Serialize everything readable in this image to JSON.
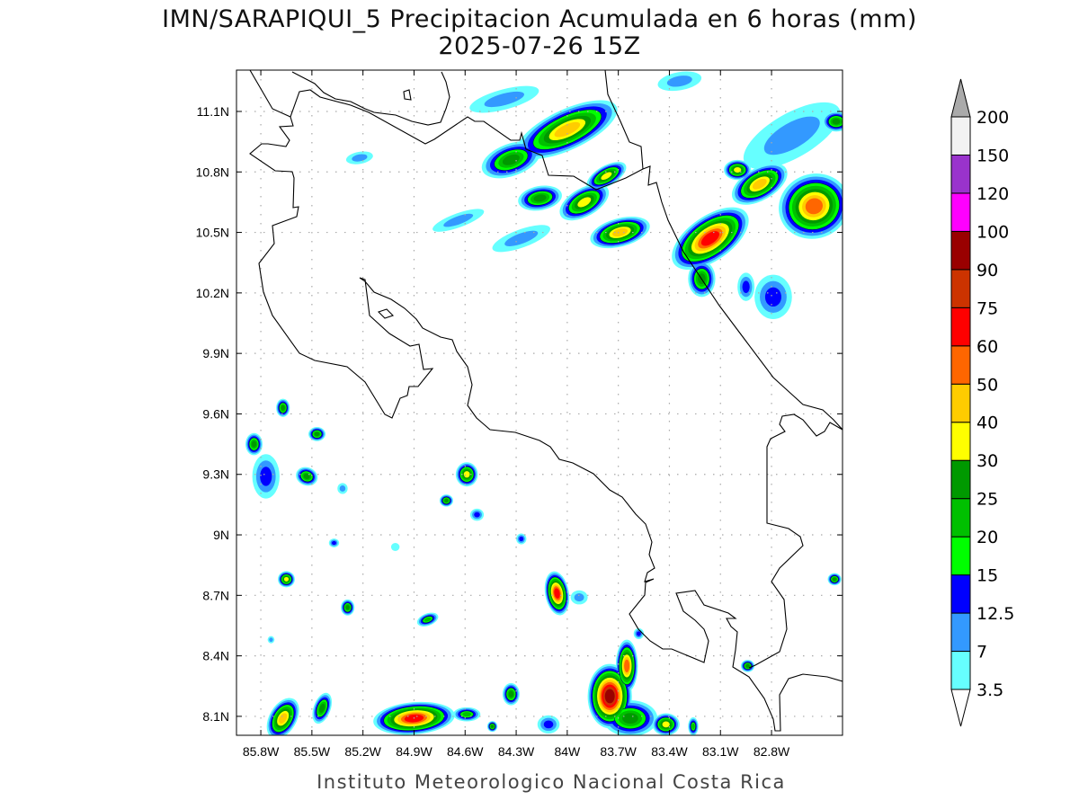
{
  "title": {
    "line1": "IMN/SARAPIQUI_5 Precipitacion Acumulada en 6 horas (mm)",
    "line2": "2025-07-26 15Z"
  },
  "footer": "Instituto Meteorologico Nacional Costa Rica",
  "map": {
    "lon_range": [
      -85.943,
      -82.383
    ],
    "lat_range": [
      8.006,
      11.305
    ],
    "lon_ticks": [
      {
        "value": -85.8,
        "label": "85.8W"
      },
      {
        "value": -85.5,
        "label": "85.5W"
      },
      {
        "value": -85.2,
        "label": "85.2W"
      },
      {
        "value": -84.9,
        "label": "84.9W"
      },
      {
        "value": -84.6,
        "label": "84.6W"
      },
      {
        "value": -84.3,
        "label": "84.3W"
      },
      {
        "value": -84.0,
        "label": "84W"
      },
      {
        "value": -83.7,
        "label": "83.7W"
      },
      {
        "value": -83.4,
        "label": "83.4W"
      },
      {
        "value": -83.1,
        "label": "83.1W"
      },
      {
        "value": -82.8,
        "label": "82.8W"
      }
    ],
    "lat_ticks": [
      {
        "value": 11.1,
        "label": "11.1N"
      },
      {
        "value": 10.8,
        "label": "10.8N"
      },
      {
        "value": 10.5,
        "label": "10.5N"
      },
      {
        "value": 10.2,
        "label": "10.2N"
      },
      {
        "value": 9.9,
        "label": "9.9N"
      },
      {
        "value": 9.6,
        "label": "9.6N"
      },
      {
        "value": 9.3,
        "label": "9.3N"
      },
      {
        "value": 9.0,
        "label": "9N"
      },
      {
        "value": 8.7,
        "label": "8.7N"
      },
      {
        "value": 8.4,
        "label": "8.4N"
      },
      {
        "value": 8.1,
        "label": "8.1N"
      }
    ],
    "grid": true
  },
  "colorbar": {
    "labels": [
      "3.5",
      "7",
      "12.5",
      "15",
      "20",
      "25",
      "30",
      "40",
      "50",
      "60",
      "75",
      "90",
      "100",
      "120",
      "150",
      "200"
    ],
    "colors": [
      "#66ffff",
      "#3399ff",
      "#0000ff",
      "#00ff00",
      "#00c000",
      "#009900",
      "#ffff00",
      "#ffcc00",
      "#ff6600",
      "#ff0000",
      "#cc3300",
      "#990000",
      "#ff00ff",
      "#9933cc",
      "#f2f2f2"
    ],
    "over_color": "#aaaaaa",
    "under_color": "#ffffff"
  },
  "chart_data": {
    "type": "heatmap",
    "title": "IMN/SARAPIQUI_5 Precipitacion Acumulada en 6 horas (mm)",
    "units": "mm",
    "levels": [
      3.5,
      7,
      12.5,
      15,
      20,
      25,
      30,
      40,
      50,
      60,
      75,
      90,
      100,
      120,
      150,
      200
    ],
    "precip_cells": [
      {
        "lon": -84.0,
        "lat": 11.01,
        "a": 0.32,
        "b": 0.1,
        "rot": -25,
        "peak": 40
      },
      {
        "lon": -84.33,
        "lat": 10.86,
        "a": 0.18,
        "b": 0.08,
        "rot": -20,
        "peak": 25
      },
      {
        "lon": -84.16,
        "lat": 10.67,
        "a": 0.13,
        "b": 0.06,
        "rot": -10,
        "peak": 25
      },
      {
        "lon": -83.9,
        "lat": 10.65,
        "a": 0.16,
        "b": 0.07,
        "rot": -30,
        "peak": 30
      },
      {
        "lon": -83.69,
        "lat": 10.5,
        "a": 0.18,
        "b": 0.07,
        "rot": -15,
        "peak": 40
      },
      {
        "lon": -83.77,
        "lat": 10.78,
        "a": 0.13,
        "b": 0.05,
        "rot": -30,
        "peak": 30
      },
      {
        "lon": -83.16,
        "lat": 10.47,
        "a": 0.26,
        "b": 0.11,
        "rot": -35,
        "peak": 60
      },
      {
        "lon": -82.87,
        "lat": 10.74,
        "a": 0.18,
        "b": 0.08,
        "rot": -30,
        "peak": 40
      },
      {
        "lon": -82.55,
        "lat": 10.63,
        "a": 0.21,
        "b": 0.16,
        "rot": -20,
        "peak": 50
      },
      {
        "lon": -83.0,
        "lat": 10.81,
        "a": 0.08,
        "b": 0.05,
        "rot": 0,
        "peak": 30
      },
      {
        "lon": -83.21,
        "lat": 10.27,
        "a": 0.08,
        "b": 0.09,
        "rot": 0,
        "peak": 25
      },
      {
        "lon": -82.68,
        "lat": 10.98,
        "a": 0.32,
        "b": 0.11,
        "rot": -30,
        "peak": 7
      },
      {
        "lon": -83.34,
        "lat": 11.25,
        "a": 0.13,
        "b": 0.045,
        "rot": -10,
        "peak": 7
      },
      {
        "lon": -84.37,
        "lat": 11.16,
        "a": 0.21,
        "b": 0.05,
        "rot": -15,
        "peak": 7
      },
      {
        "lon": -85.22,
        "lat": 10.87,
        "a": 0.08,
        "b": 0.03,
        "rot": -10,
        "peak": 7
      },
      {
        "lon": -84.64,
        "lat": 10.56,
        "a": 0.16,
        "b": 0.035,
        "rot": -20,
        "peak": 7
      },
      {
        "lon": -84.27,
        "lat": 10.47,
        "a": 0.18,
        "b": 0.045,
        "rot": -20,
        "peak": 7
      },
      {
        "lon": -82.79,
        "lat": 10.18,
        "a": 0.11,
        "b": 0.11,
        "rot": 0,
        "peak": 12.5
      },
      {
        "lon": -82.95,
        "lat": 10.23,
        "a": 0.05,
        "b": 0.07,
        "rot": 0,
        "peak": 12.5
      },
      {
        "lon": -82.42,
        "lat": 11.05,
        "a": 0.08,
        "b": 0.05,
        "rot": 0,
        "peak": 25
      },
      {
        "lon": -85.67,
        "lat": 9.63,
        "a": 0.04,
        "b": 0.045,
        "rot": 0,
        "peak": 25
      },
      {
        "lon": -85.84,
        "lat": 9.45,
        "a": 0.05,
        "b": 0.055,
        "rot": 0,
        "peak": 25
      },
      {
        "lon": -85.77,
        "lat": 9.29,
        "a": 0.08,
        "b": 0.11,
        "rot": 0,
        "peak": 12.5
      },
      {
        "lon": -85.53,
        "lat": 9.29,
        "a": 0.065,
        "b": 0.045,
        "rot": 20,
        "peak": 25
      },
      {
        "lon": -85.47,
        "lat": 9.5,
        "a": 0.05,
        "b": 0.035,
        "rot": 0,
        "peak": 25
      },
      {
        "lon": -85.32,
        "lat": 9.23,
        "a": 0.03,
        "b": 0.027,
        "rot": 0,
        "peak": 7
      },
      {
        "lon": -85.37,
        "lat": 8.96,
        "a": 0.03,
        "b": 0.022,
        "rot": 0,
        "peak": 12.5
      },
      {
        "lon": -85.65,
        "lat": 8.78,
        "a": 0.05,
        "b": 0.04,
        "rot": 0,
        "peak": 30
      },
      {
        "lon": -85.29,
        "lat": 8.64,
        "a": 0.04,
        "b": 0.04,
        "rot": 0,
        "peak": 25
      },
      {
        "lon": -84.82,
        "lat": 8.58,
        "a": 0.065,
        "b": 0.03,
        "rot": -20,
        "peak": 20
      },
      {
        "lon": -84.59,
        "lat": 9.3,
        "a": 0.065,
        "b": 0.06,
        "rot": 0,
        "peak": 30
      },
      {
        "lon": -84.71,
        "lat": 9.17,
        "a": 0.04,
        "b": 0.03,
        "rot": 0,
        "peak": 25
      },
      {
        "lon": -84.53,
        "lat": 9.1,
        "a": 0.04,
        "b": 0.03,
        "rot": 0,
        "peak": 12.5
      },
      {
        "lon": -84.27,
        "lat": 8.98,
        "a": 0.03,
        "b": 0.027,
        "rot": 0,
        "peak": 12.5
      },
      {
        "lon": -84.06,
        "lat": 8.71,
        "a": 0.07,
        "b": 0.11,
        "rot": -10,
        "peak": 60
      },
      {
        "lon": -83.93,
        "lat": 8.69,
        "a": 0.05,
        "b": 0.035,
        "rot": 0,
        "peak": 7
      },
      {
        "lon": -83.75,
        "lat": 8.2,
        "a": 0.13,
        "b": 0.16,
        "rot": 0,
        "peak": 90
      },
      {
        "lon": -83.65,
        "lat": 8.35,
        "a": 0.065,
        "b": 0.13,
        "rot": 0,
        "peak": 50
      },
      {
        "lon": -83.58,
        "lat": 8.51,
        "a": 0.03,
        "b": 0.027,
        "rot": 0,
        "peak": 12.5
      },
      {
        "lon": -83.42,
        "lat": 8.06,
        "a": 0.08,
        "b": 0.055,
        "rot": 0,
        "peak": 30
      },
      {
        "lon": -83.26,
        "lat": 8.05,
        "a": 0.03,
        "b": 0.045,
        "rot": 0,
        "peak": 20
      },
      {
        "lon": -83.63,
        "lat": 8.09,
        "a": 0.16,
        "b": 0.09,
        "rot": 0,
        "peak": 25
      },
      {
        "lon": -84.9,
        "lat": 8.09,
        "a": 0.24,
        "b": 0.08,
        "rot": -5,
        "peak": 60
      },
      {
        "lon": -85.67,
        "lat": 8.09,
        "a": 0.08,
        "b": 0.11,
        "rot": 30,
        "peak": 40
      },
      {
        "lon": -85.44,
        "lat": 8.14,
        "a": 0.05,
        "b": 0.08,
        "rot": 20,
        "peak": 25
      },
      {
        "lon": -84.59,
        "lat": 8.11,
        "a": 0.08,
        "b": 0.035,
        "rot": 0,
        "peak": 20
      },
      {
        "lon": -84.33,
        "lat": 8.21,
        "a": 0.05,
        "b": 0.055,
        "rot": 0,
        "peak": 25
      },
      {
        "lon": -84.44,
        "lat": 8.05,
        "a": 0.03,
        "b": 0.027,
        "rot": 0,
        "peak": 25
      },
      {
        "lon": -84.11,
        "lat": 8.06,
        "a": 0.065,
        "b": 0.045,
        "rot": 0,
        "peak": 12.5
      },
      {
        "lon": -82.94,
        "lat": 8.35,
        "a": 0.04,
        "b": 0.03,
        "rot": 0,
        "peak": 25
      },
      {
        "lon": -82.43,
        "lat": 8.78,
        "a": 0.04,
        "b": 0.03,
        "rot": 0,
        "peak": 25
      },
      {
        "lon": -85.74,
        "lat": 8.48,
        "a": 0.02,
        "b": 0.018,
        "rot": 0,
        "peak": 7
      },
      {
        "lon": -85.01,
        "lat": 8.94,
        "a": 0.025,
        "b": 0.02,
        "rot": 0,
        "peak": 3.5
      }
    ]
  }
}
